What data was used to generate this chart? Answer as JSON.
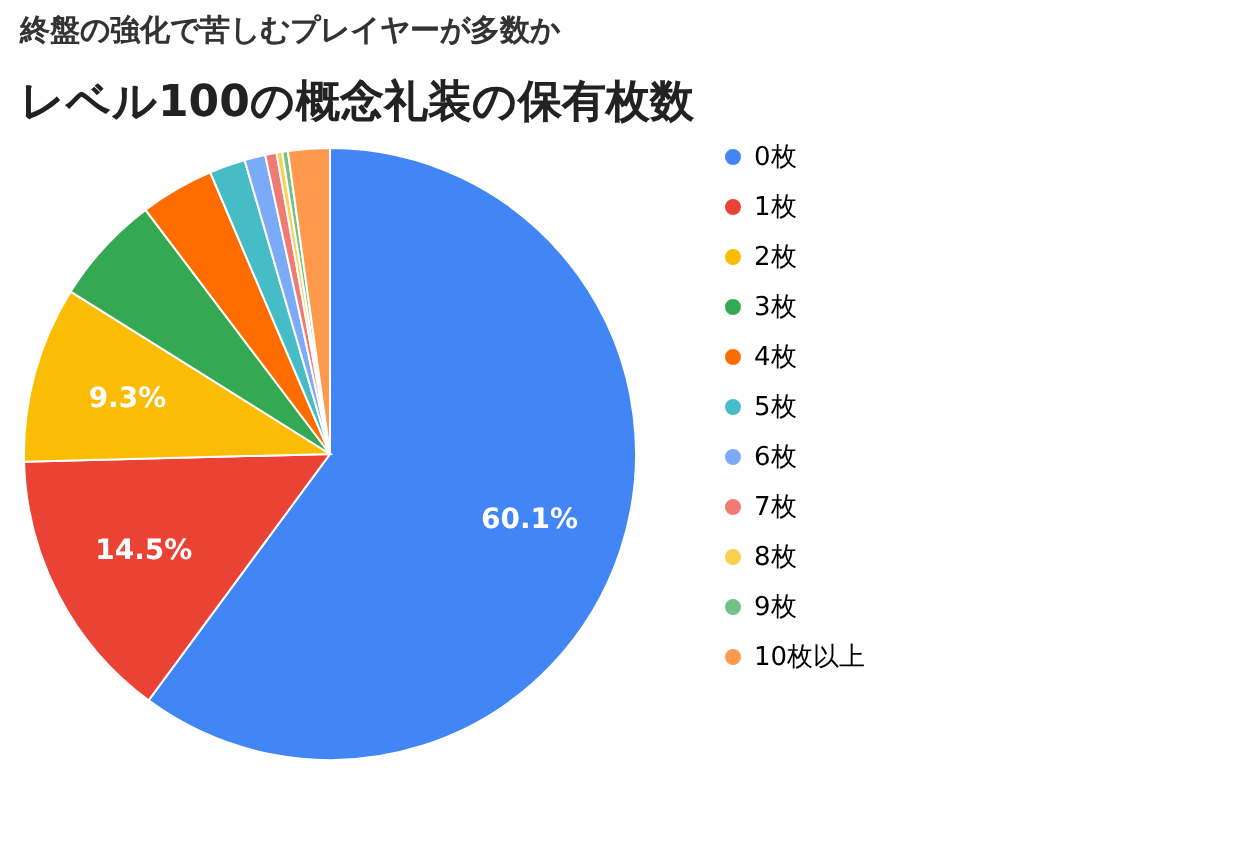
{
  "chart_data": {
    "type": "pie",
    "title": "終盤の強化で苦しむプレイヤーが多数か",
    "subtitle": "レベル100の概念礼装の保有枚数",
    "categories": [
      "0枚",
      "1枚",
      "2枚",
      "3枚",
      "4枚",
      "5枚",
      "6枚",
      "7枚",
      "8枚",
      "9枚",
      "10枚以上"
    ],
    "values": [
      60.1,
      14.5,
      9.3,
      5.8,
      3.9,
      1.9,
      1.1,
      0.6,
      0.3,
      0.3,
      2.2
    ],
    "colors": [
      "#4285f4",
      "#ea4335",
      "#fbbc04",
      "#34a853",
      "#ff6d01",
      "#46bdc6",
      "#7baaf7",
      "#f07b72",
      "#fcd04f",
      "#71c287",
      "#ff994d"
    ],
    "value_labels": [
      "60.1%",
      "14.5%",
      "9.3%",
      null,
      null,
      null,
      null,
      null,
      null,
      null,
      null
    ],
    "legend": "right"
  }
}
